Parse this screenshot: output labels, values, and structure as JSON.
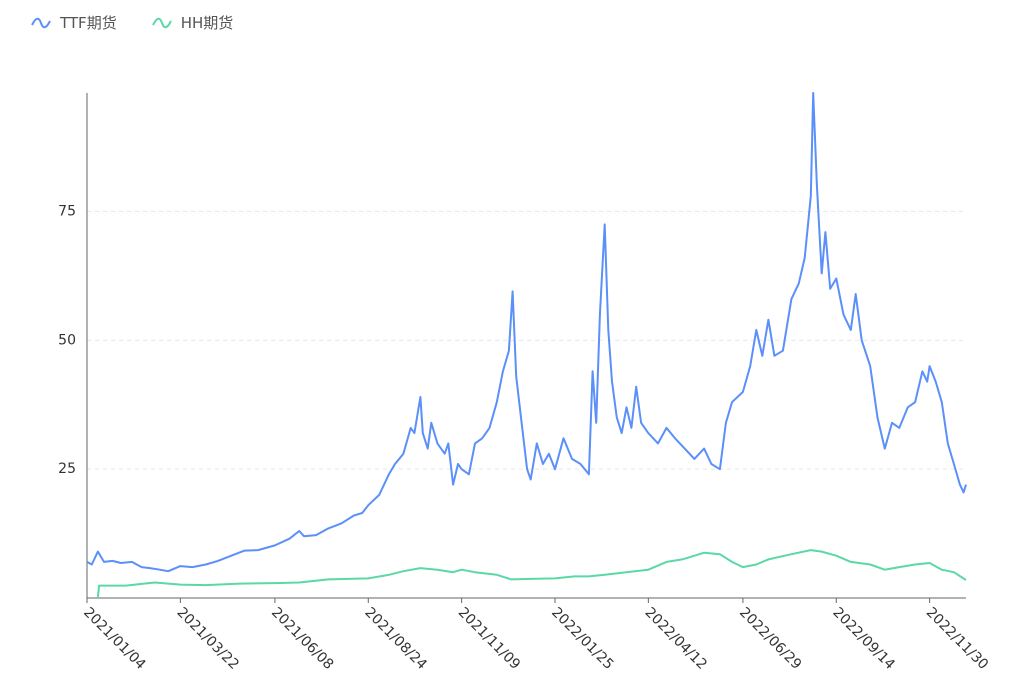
{
  "legend": {
    "items": [
      {
        "label": "TTF期货",
        "color": "#5B8FF9"
      },
      {
        "label": "HH期货",
        "color": "#5AD8A6"
      }
    ]
  },
  "chart_data": {
    "type": "line",
    "title": "",
    "xlabel": "",
    "ylabel": "",
    "x_ticks": [
      "2021/01/04",
      "2021/03/22",
      "2021/06/08",
      "2021/08/24",
      "2021/11/09",
      "2022/01/25",
      "2022/04/12",
      "2022/06/29",
      "2022/09/14",
      "2022/11/30"
    ],
    "y_ticks": [
      25,
      50,
      75
    ],
    "ylim": [
      0,
      98
    ],
    "xlim": [
      "2021-01-04",
      "2022-12-30"
    ],
    "grid": "horizontal dashed",
    "legend_position": "top-left",
    "series": [
      {
        "name": "TTF期货",
        "color": "#5B8FF9",
        "points": [
          [
            "2021-01-04",
            7.0
          ],
          [
            "2021-01-08",
            6.5
          ],
          [
            "2021-01-13",
            9.0
          ],
          [
            "2021-01-18",
            7.0
          ],
          [
            "2021-01-25",
            7.2
          ],
          [
            "2021-02-01",
            6.8
          ],
          [
            "2021-02-10",
            7.0
          ],
          [
            "2021-02-18",
            6.0
          ],
          [
            "2021-02-25",
            5.8
          ],
          [
            "2021-03-05",
            5.5
          ],
          [
            "2021-03-12",
            5.2
          ],
          [
            "2021-03-22",
            6.2
          ],
          [
            "2021-04-01",
            6.0
          ],
          [
            "2021-04-12",
            6.5
          ],
          [
            "2021-04-22",
            7.2
          ],
          [
            "2021-05-03",
            8.2
          ],
          [
            "2021-05-14",
            9.2
          ],
          [
            "2021-05-25",
            9.3
          ],
          [
            "2021-06-08",
            10.2
          ],
          [
            "2021-06-20",
            11.5
          ],
          [
            "2021-06-28",
            13.0
          ],
          [
            "2021-07-02",
            12.0
          ],
          [
            "2021-07-12",
            12.2
          ],
          [
            "2021-07-22",
            13.5
          ],
          [
            "2021-08-02",
            14.5
          ],
          [
            "2021-08-12",
            16.0
          ],
          [
            "2021-08-19",
            16.5
          ],
          [
            "2021-08-24",
            18.0
          ],
          [
            "2021-09-02",
            20.0
          ],
          [
            "2021-09-10",
            24.0
          ],
          [
            "2021-09-15",
            26.0
          ],
          [
            "2021-09-22",
            28.0
          ],
          [
            "2021-09-28",
            33.0
          ],
          [
            "2021-10-01",
            32.0
          ],
          [
            "2021-10-06",
            39.0
          ],
          [
            "2021-10-08",
            32.0
          ],
          [
            "2021-10-12",
            29.0
          ],
          [
            "2021-10-15",
            34.0
          ],
          [
            "2021-10-20",
            30.0
          ],
          [
            "2021-10-26",
            28.0
          ],
          [
            "2021-10-29",
            30.0
          ],
          [
            "2021-11-02",
            22.0
          ],
          [
            "2021-11-06",
            26.0
          ],
          [
            "2021-11-09",
            25.0
          ],
          [
            "2021-11-15",
            24.0
          ],
          [
            "2021-11-20",
            30.0
          ],
          [
            "2021-11-26",
            31.0
          ],
          [
            "2021-12-02",
            33.0
          ],
          [
            "2021-12-08",
            38.0
          ],
          [
            "2021-12-13",
            44.0
          ],
          [
            "2021-12-18",
            48.0
          ],
          [
            "2021-12-21",
            59.5
          ],
          [
            "2021-12-24",
            43.0
          ],
          [
            "2021-12-28",
            35.0
          ],
          [
            "2022-01-02",
            25.0
          ],
          [
            "2022-01-05",
            23.0
          ],
          [
            "2022-01-10",
            30.0
          ],
          [
            "2022-01-15",
            26.0
          ],
          [
            "2022-01-20",
            28.0
          ],
          [
            "2022-01-25",
            25.0
          ],
          [
            "2022-02-01",
            31.0
          ],
          [
            "2022-02-08",
            27.0
          ],
          [
            "2022-02-15",
            26.0
          ],
          [
            "2022-02-22",
            24.0
          ],
          [
            "2022-02-25",
            44.0
          ],
          [
            "2022-02-28",
            34.0
          ],
          [
            "2022-03-03",
            55.0
          ],
          [
            "2022-03-07",
            72.5
          ],
          [
            "2022-03-10",
            52.0
          ],
          [
            "2022-03-13",
            42.0
          ],
          [
            "2022-03-17",
            35.0
          ],
          [
            "2022-03-21",
            32.0
          ],
          [
            "2022-03-25",
            37.0
          ],
          [
            "2022-03-29",
            33.0
          ],
          [
            "2022-04-02",
            41.0
          ],
          [
            "2022-04-06",
            34.0
          ],
          [
            "2022-04-12",
            32.0
          ],
          [
            "2022-04-20",
            30.0
          ],
          [
            "2022-04-27",
            33.0
          ],
          [
            "2022-05-04",
            31.0
          ],
          [
            "2022-05-12",
            29.0
          ],
          [
            "2022-05-20",
            27.0
          ],
          [
            "2022-05-28",
            29.0
          ],
          [
            "2022-06-03",
            26.0
          ],
          [
            "2022-06-10",
            25.0
          ],
          [
            "2022-06-15",
            34.0
          ],
          [
            "2022-06-20",
            38.0
          ],
          [
            "2022-06-29",
            40.0
          ],
          [
            "2022-07-05",
            45.0
          ],
          [
            "2022-07-10",
            52.0
          ],
          [
            "2022-07-15",
            47.0
          ],
          [
            "2022-07-20",
            54.0
          ],
          [
            "2022-07-25",
            47.0
          ],
          [
            "2022-08-01",
            48.0
          ],
          [
            "2022-08-08",
            58.0
          ],
          [
            "2022-08-14",
            61.0
          ],
          [
            "2022-08-19",
            66.0
          ],
          [
            "2022-08-24",
            78.0
          ],
          [
            "2022-08-26",
            98.0
          ],
          [
            "2022-08-29",
            80.0
          ],
          [
            "2022-09-02",
            63.0
          ],
          [
            "2022-09-05",
            71.0
          ],
          [
            "2022-09-09",
            60.0
          ],
          [
            "2022-09-14",
            62.0
          ],
          [
            "2022-09-20",
            55.0
          ],
          [
            "2022-09-26",
            52.0
          ],
          [
            "2022-09-30",
            59.0
          ],
          [
            "2022-10-05",
            50.0
          ],
          [
            "2022-10-12",
            45.0
          ],
          [
            "2022-10-18",
            35.0
          ],
          [
            "2022-10-24",
            29.0
          ],
          [
            "2022-10-30",
            34.0
          ],
          [
            "2022-11-05",
            33.0
          ],
          [
            "2022-11-12",
            37.0
          ],
          [
            "2022-11-18",
            38.0
          ],
          [
            "2022-11-24",
            44.0
          ],
          [
            "2022-11-28",
            42.0
          ],
          [
            "2022-11-30",
            45.0
          ],
          [
            "2022-12-05",
            42.0
          ],
          [
            "2022-12-10",
            38.0
          ],
          [
            "2022-12-15",
            30.0
          ],
          [
            "2022-12-20",
            26.0
          ],
          [
            "2022-12-25",
            22.0
          ],
          [
            "2022-12-28",
            20.5
          ],
          [
            "2022-12-30",
            22.0
          ]
        ]
      },
      {
        "name": "HH期货",
        "color": "#5AD8A6",
        "points": [
          [
            "2021-01-13",
            0.2
          ],
          [
            "2021-01-14",
            2.4
          ],
          [
            "2021-02-05",
            2.4
          ],
          [
            "2021-02-20",
            2.8
          ],
          [
            "2021-03-01",
            3.0
          ],
          [
            "2021-03-22",
            2.6
          ],
          [
            "2021-04-12",
            2.5
          ],
          [
            "2021-05-10",
            2.8
          ],
          [
            "2021-06-08",
            2.9
          ],
          [
            "2021-06-28",
            3.0
          ],
          [
            "2021-07-22",
            3.6
          ],
          [
            "2021-08-24",
            3.8
          ],
          [
            "2021-09-10",
            4.5
          ],
          [
            "2021-09-22",
            5.2
          ],
          [
            "2021-10-06",
            5.8
          ],
          [
            "2021-10-20",
            5.5
          ],
          [
            "2021-11-02",
            5.0
          ],
          [
            "2021-11-09",
            5.5
          ],
          [
            "2021-11-20",
            5.0
          ],
          [
            "2021-12-08",
            4.5
          ],
          [
            "2021-12-20",
            3.6
          ],
          [
            "2022-01-05",
            3.7
          ],
          [
            "2022-01-25",
            3.8
          ],
          [
            "2022-02-10",
            4.2
          ],
          [
            "2022-02-22",
            4.2
          ],
          [
            "2022-03-07",
            4.5
          ],
          [
            "2022-04-12",
            5.5
          ],
          [
            "2022-04-27",
            7.0
          ],
          [
            "2022-05-10",
            7.5
          ],
          [
            "2022-05-28",
            8.8
          ],
          [
            "2022-06-10",
            8.5
          ],
          [
            "2022-06-20",
            7.0
          ],
          [
            "2022-06-29",
            6.0
          ],
          [
            "2022-07-10",
            6.5
          ],
          [
            "2022-07-20",
            7.5
          ],
          [
            "2022-08-08",
            8.5
          ],
          [
            "2022-08-24",
            9.3
          ],
          [
            "2022-09-02",
            9.0
          ],
          [
            "2022-09-14",
            8.2
          ],
          [
            "2022-09-26",
            7.0
          ],
          [
            "2022-10-12",
            6.5
          ],
          [
            "2022-10-24",
            5.5
          ],
          [
            "2022-11-05",
            6.0
          ],
          [
            "2022-11-18",
            6.5
          ],
          [
            "2022-11-30",
            6.8
          ],
          [
            "2022-12-10",
            5.5
          ],
          [
            "2022-12-20",
            5.0
          ],
          [
            "2022-12-30",
            3.5
          ]
        ]
      }
    ]
  }
}
